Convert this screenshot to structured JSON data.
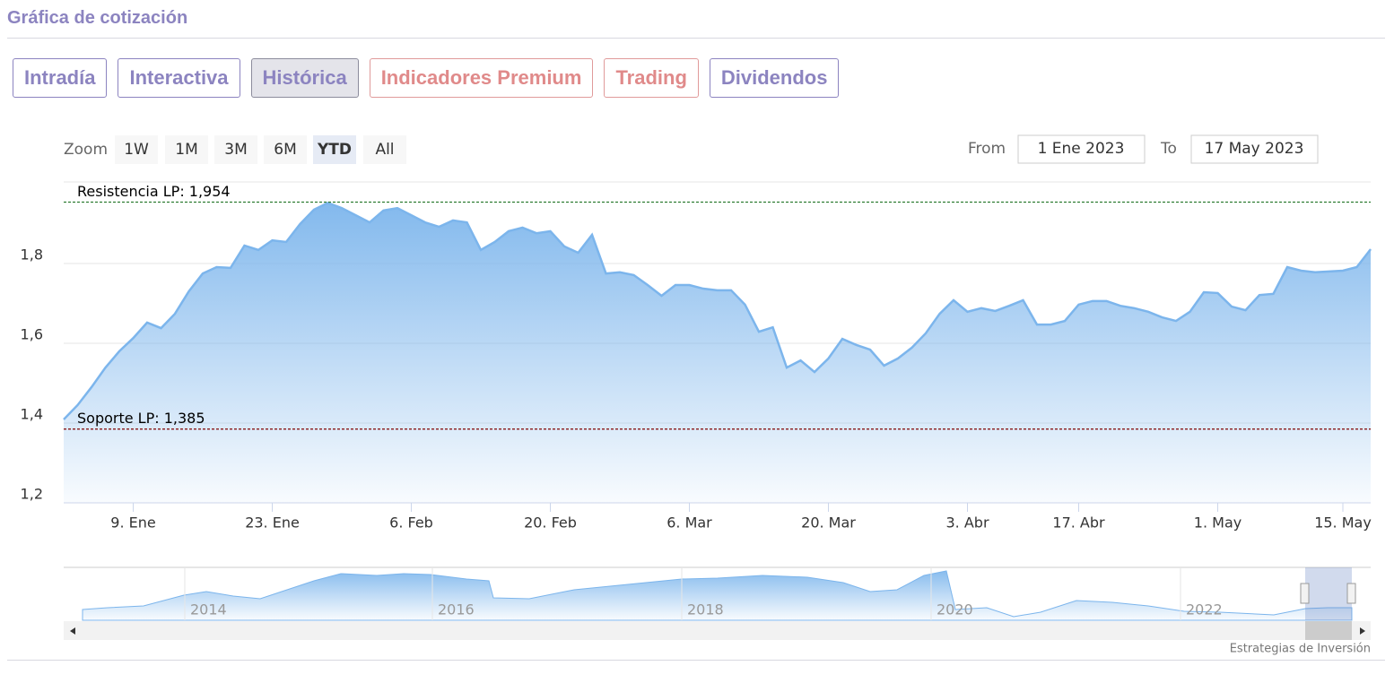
{
  "header": {
    "title": "Gráfica de cotización"
  },
  "tabs": [
    "Intradía",
    "Interactiva",
    "Histórica",
    "Indicadores Premium",
    "Trading",
    "Dividendos"
  ],
  "range_selector": {
    "zoom_label": "Zoom",
    "buttons": [
      "1W",
      "1M",
      "3M",
      "6M",
      "YTD",
      "All"
    ],
    "from_label": "From",
    "from_value": "1 Ene 2023",
    "to_label": "To",
    "to_value": "17 May 2023"
  },
  "navigator": {
    "labels": [
      "2014",
      "2016",
      "2018",
      "2020",
      "2022"
    ]
  },
  "credit": "Estrategias de Inversión",
  "chart_data": {
    "type": "area",
    "x": [
      "2023-01-02",
      "2023-01-03",
      "2023-01-04",
      "2023-01-05",
      "2023-01-06",
      "2023-01-09",
      "2023-01-10",
      "2023-01-11",
      "2023-01-12",
      "2023-01-13",
      "2023-01-16",
      "2023-01-17",
      "2023-01-18",
      "2023-01-19",
      "2023-01-20",
      "2023-01-23",
      "2023-01-24",
      "2023-01-25",
      "2023-01-26",
      "2023-01-27",
      "2023-01-30",
      "2023-01-31",
      "2023-02-01",
      "2023-02-02",
      "2023-02-03",
      "2023-02-06",
      "2023-02-07",
      "2023-02-08",
      "2023-02-09",
      "2023-02-10",
      "2023-02-13",
      "2023-02-14",
      "2023-02-15",
      "2023-02-16",
      "2023-02-17",
      "2023-02-20",
      "2023-02-21",
      "2023-02-22",
      "2023-02-23",
      "2023-02-24",
      "2023-02-27",
      "2023-02-28",
      "2023-03-01",
      "2023-03-02",
      "2023-03-03",
      "2023-03-06",
      "2023-03-07",
      "2023-03-08",
      "2023-03-09",
      "2023-03-10",
      "2023-03-13",
      "2023-03-14",
      "2023-03-15",
      "2023-03-16",
      "2023-03-17",
      "2023-03-20",
      "2023-03-21",
      "2023-03-22",
      "2023-03-23",
      "2023-03-24",
      "2023-03-27",
      "2023-03-28",
      "2023-03-29",
      "2023-03-30",
      "2023-03-31",
      "2023-04-03",
      "2023-04-04",
      "2023-04-05",
      "2023-04-06",
      "2023-04-11",
      "2023-04-12",
      "2023-04-13",
      "2023-04-14",
      "2023-04-17",
      "2023-04-18",
      "2023-04-19",
      "2023-04-20",
      "2023-04-21",
      "2023-04-24",
      "2023-04-25",
      "2023-04-26",
      "2023-04-27",
      "2023-04-28",
      "2023-05-02",
      "2023-05-03",
      "2023-05-04",
      "2023-05-05",
      "2023-05-08",
      "2023-05-09",
      "2023-05-10",
      "2023-05-11",
      "2023-05-12",
      "2023-05-15",
      "2023-05-16",
      "2023-05-17"
    ],
    "series": [
      {
        "color": "#7cb5ec",
        "values": [
          1.409,
          1.445,
          1.49,
          1.539,
          1.58,
          1.613,
          1.652,
          1.638,
          1.674,
          1.73,
          1.775,
          1.791,
          1.789,
          1.845,
          1.834,
          1.858,
          1.854,
          1.899,
          1.935,
          1.952,
          1.939,
          1.921,
          1.903,
          1.933,
          1.939,
          1.921,
          1.903,
          1.892,
          1.908,
          1.903,
          1.834,
          1.854,
          1.881,
          1.89,
          1.876,
          1.881,
          1.843,
          1.827,
          1.872,
          1.775,
          1.778,
          1.771,
          1.746,
          1.719,
          1.746,
          1.746,
          1.737,
          1.733,
          1.733,
          1.697,
          1.629,
          1.64,
          1.539,
          1.557,
          1.528,
          1.562,
          1.611,
          1.596,
          1.584,
          1.544,
          1.562,
          1.589,
          1.625,
          1.674,
          1.708,
          1.679,
          1.688,
          1.681,
          1.694,
          1.708,
          1.647,
          1.647,
          1.656,
          1.697,
          1.706,
          1.706,
          1.694,
          1.688,
          1.679,
          1.665,
          1.656,
          1.679,
          1.728,
          1.726,
          1.692,
          1.683,
          1.721,
          1.724,
          1.791,
          1.782,
          1.778,
          1.78,
          1.782,
          1.791,
          1.836
        ]
      }
    ],
    "xlim": [
      "2023-01-02",
      "2023-05-17"
    ],
    "xticks": [
      {
        "value": "2023-01-09",
        "label": "9. Ene"
      },
      {
        "value": "2023-01-23",
        "label": "23. Ene"
      },
      {
        "value": "2023-02-06",
        "label": "6. Feb"
      },
      {
        "value": "2023-02-20",
        "label": "20. Feb"
      },
      {
        "value": "2023-03-06",
        "label": "6. Mar"
      },
      {
        "value": "2023-03-20",
        "label": "20. Mar"
      },
      {
        "value": "2023-04-03",
        "label": "3. Abr"
      },
      {
        "value": "2023-04-17",
        "label": "17. Abr"
      },
      {
        "value": "2023-05-01",
        "label": "1. May"
      },
      {
        "value": "2023-05-15",
        "label": "15. May"
      }
    ],
    "ylim": [
      1.2,
      2.0
    ],
    "yticks": [
      {
        "value": 1.2,
        "label": "1,2"
      },
      {
        "value": 1.4,
        "label": "1,4"
      },
      {
        "value": 1.6,
        "label": "1,6"
      },
      {
        "value": 1.8,
        "label": "1,8"
      }
    ],
    "grid": true,
    "plot_lines": [
      {
        "label": "Resistencia LP: 1,954",
        "value": 1.954,
        "color": "#2e7d32"
      },
      {
        "label": "Soporte LP: 1,385",
        "value": 1.385,
        "color": "#8b1a1a"
      }
    ]
  }
}
